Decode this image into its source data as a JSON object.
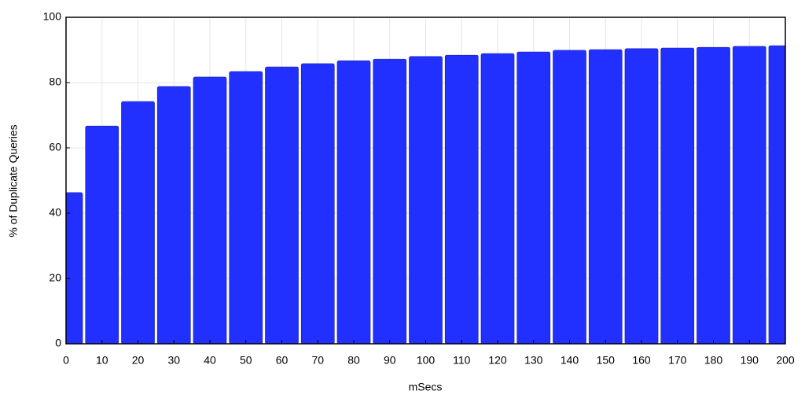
{
  "chart_data": {
    "type": "bar",
    "x_label": "mSecs",
    "y_label": "% of Duplicate Queries",
    "x": [
      0,
      10,
      20,
      30,
      40,
      50,
      60,
      70,
      80,
      90,
      100,
      110,
      120,
      130,
      140,
      150,
      160,
      170,
      180,
      190,
      200
    ],
    "values": [
      46.3,
      66.7,
      74.2,
      78.8,
      81.7,
      83.4,
      84.8,
      85.8,
      86.7,
      87.2,
      88.0,
      88.4,
      88.9,
      89.4,
      89.9,
      90.1,
      90.4,
      90.6,
      90.8,
      91.1,
      91.3
    ],
    "color": "#2230ff",
    "xlim": [
      0,
      200
    ],
    "xticks": [
      0,
      10,
      20,
      30,
      40,
      50,
      60,
      70,
      80,
      90,
      100,
      110,
      120,
      130,
      140,
      150,
      160,
      170,
      180,
      190,
      200
    ],
    "ylim": [
      0,
      100
    ],
    "yticks": [
      0,
      20,
      40,
      60,
      80,
      100
    ],
    "grid": true
  }
}
